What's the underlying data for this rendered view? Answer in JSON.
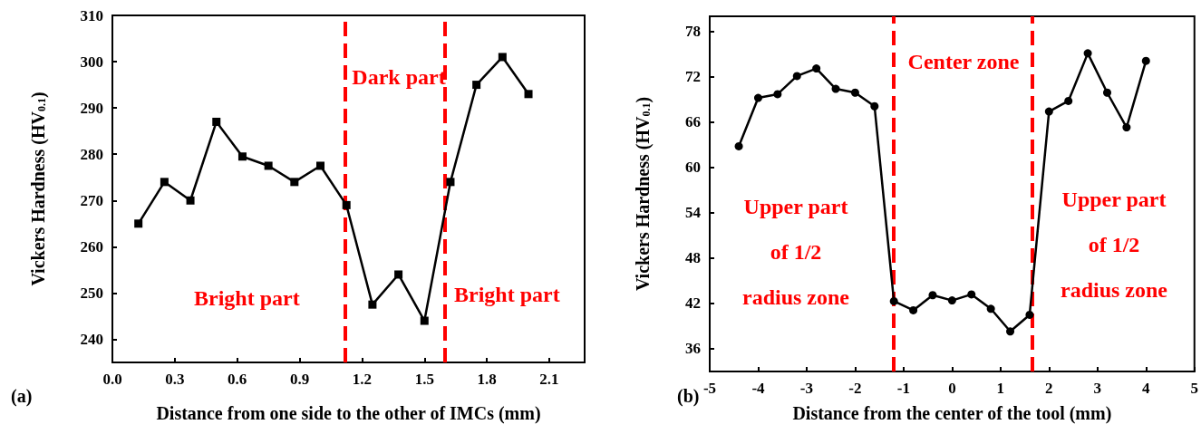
{
  "chart_data": [
    {
      "type": "line",
      "xlabel": "Distance from one side to the other of IMCs (mm)",
      "ylabel": "Vickers Hardness (HV$_{0.1}$)",
      "x": [
        0.125,
        0.25,
        0.375,
        0.5,
        0.625,
        0.75,
        0.875,
        1.0,
        1.125,
        1.25,
        1.375,
        1.5,
        1.625,
        1.75,
        1.875,
        2.0
      ],
      "series": [
        {
          "color": "#000000",
          "values": [
            265,
            274,
            270,
            287,
            279.5,
            277.5,
            274,
            277.5,
            269,
            247.5,
            254,
            244,
            274,
            295,
            301,
            293
          ]
        }
      ],
      "xlim": [
        0,
        2.27
      ],
      "xticks": [
        {
          "value": 0,
          "label": "0.0"
        },
        0.3,
        0.6,
        0.9,
        1.2,
        1.5,
        1.8,
        2.1
      ],
      "ylim": [
        235,
        310
      ],
      "yticks": [
        240,
        250,
        260,
        270,
        280,
        290,
        300,
        310
      ],
      "marker": "square",
      "line_style": "solid",
      "grid": false,
      "ref_lines": [
        {
          "axis": "x",
          "value": 1.12,
          "color": "#ff0000",
          "line_style": "dashed"
        },
        {
          "axis": "x",
          "value": 1.6,
          "color": "#ff0000",
          "line_style": "dashed"
        }
      ],
      "annotations": [
        "Dark part",
        "Bright part",
        "Bright part",
        "(a)"
      ]
    },
    {
      "type": "line",
      "xlabel": "Distance from the center of the tool (mm)",
      "ylabel": "Vickers Hardness (HV$_{0.1}$)",
      "x": [
        -4.4,
        -4,
        -3.6,
        -3.2,
        -2.8,
        -2.4,
        -2,
        -1.6,
        -1.2,
        -0.8,
        -0.4,
        0,
        0.4,
        0.8,
        1.2,
        1.6,
        2,
        2.4,
        2.8,
        3.2,
        3.6,
        4
      ],
      "series": [
        {
          "color": "#000000",
          "values": [
            62.8,
            69.2,
            69.7,
            72.1,
            73.1,
            70.4,
            69.9,
            68.1,
            42.3,
            41.1,
            43.1,
            42.4,
            43.2,
            41.3,
            38.3,
            40.5,
            67.4,
            68.8,
            75.1,
            69.9,
            65.3,
            74.1
          ]
        }
      ],
      "xlim": [
        -5,
        5
      ],
      "xticks": [
        -5,
        -4,
        -3,
        -2,
        -1,
        0,
        1,
        2,
        3,
        4,
        5
      ],
      "ylim": [
        33,
        80
      ],
      "yticks": [
        36,
        42,
        48,
        54,
        60,
        66,
        72,
        78
      ],
      "marker": "circle",
      "line_style": "solid",
      "grid": false,
      "ref_lines": [
        {
          "axis": "x",
          "value": -1.2,
          "color": "#ff0000",
          "line_style": "dashed"
        },
        {
          "axis": "x",
          "value": 1.65,
          "color": "#ff0000",
          "line_style": "dashed"
        }
      ],
      "annotations": [
        "Center zone",
        "Upper part\nof 1/2\nradius zone",
        "Upper part\nof 1/2\nradius zone",
        "(b)"
      ]
    }
  ]
}
